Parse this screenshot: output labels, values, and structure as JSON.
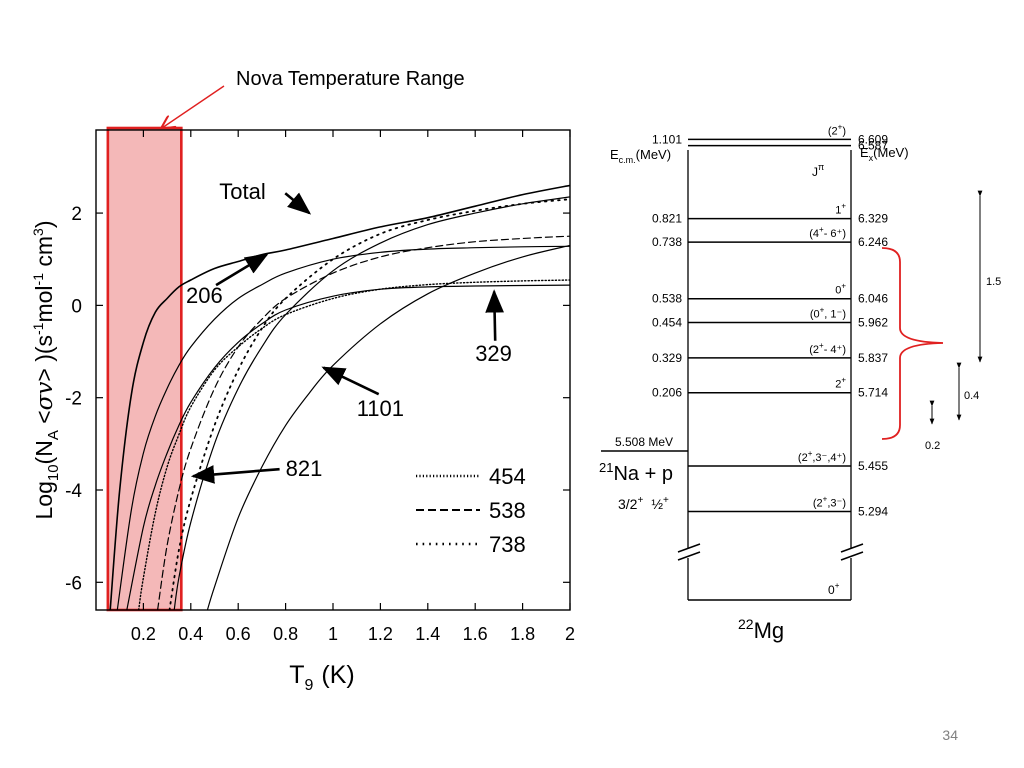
{
  "slide": {
    "page_number": "34",
    "callout": "Nova Temperature Range"
  },
  "colors": {
    "highlight_fill": "#f4b8b8",
    "highlight_stroke": "#e02020",
    "callout_line": "#e02020",
    "brace": "#e02020"
  },
  "chart_data": {
    "type": "line",
    "xlabel_main": "T",
    "xlabel_sub": "9",
    "xlabel_unit": "(K)",
    "ylabel_prefix": "Log",
    "ylabel_sub": "10",
    "ylabel_mid": "(N",
    "ylabel_a": "A",
    "ylabel_sigma": " <",
    "ylabel_sv": "σv",
    "ylabel_close": "> )(s",
    "ylabel_neg1a": "-1",
    "ylabel_mol": "mol",
    "ylabel_neg1b": "-1",
    "ylabel_cm": " cm",
    "ylabel_3": "3",
    "ylabel_end": ")",
    "xlim": [
      0,
      2
    ],
    "ylim": [
      -6.6,
      3.8
    ],
    "x_ticks": [
      {
        "value": 0.2,
        "label": "0.2"
      },
      {
        "value": 0.4,
        "label": "0.4"
      },
      {
        "value": 0.6,
        "label": "0.6"
      },
      {
        "value": 0.8,
        "label": "0.8"
      },
      {
        "value": 1.0,
        "label": "1"
      },
      {
        "value": 1.2,
        "label": "1.2"
      },
      {
        "value": 1.4,
        "label": "1.4"
      },
      {
        "value": 1.6,
        "label": "1.6"
      },
      {
        "value": 1.8,
        "label": "1.8"
      },
      {
        "value": 2.0,
        "label": "2"
      }
    ],
    "y_ticks": [
      {
        "value": 2,
        "label": "2"
      },
      {
        "value": 0,
        "label": "0"
      },
      {
        "value": -2,
        "label": "-2"
      },
      {
        "value": -4,
        "label": "-4"
      },
      {
        "value": -6,
        "label": "-6"
      }
    ],
    "nova_range": [
      0.05,
      0.36
    ],
    "series": [
      {
        "name": "Total",
        "style": "solid",
        "width": 1.6,
        "x": [
          0.06,
          0.1,
          0.15,
          0.2,
          0.25,
          0.3,
          0.35,
          0.4,
          0.5,
          0.6,
          0.7,
          0.8,
          1.0,
          1.2,
          1.4,
          1.6,
          1.8,
          2.0
        ],
        "y": [
          -6.6,
          -4.0,
          -1.9,
          -0.8,
          -0.15,
          0.15,
          0.4,
          0.55,
          0.8,
          0.95,
          1.1,
          1.2,
          1.45,
          1.7,
          1.9,
          2.15,
          2.4,
          2.6
        ]
      },
      {
        "name": "206",
        "style": "solid",
        "width": 1.2,
        "x": [
          0.09,
          0.15,
          0.2,
          0.25,
          0.3,
          0.35,
          0.4,
          0.5,
          0.6,
          0.7,
          0.8,
          1.0,
          1.2,
          1.4,
          1.6,
          1.8,
          2.0
        ],
        "y": [
          -6.6,
          -4.4,
          -3.2,
          -2.4,
          -1.8,
          -1.3,
          -0.9,
          -0.3,
          0.15,
          0.45,
          0.7,
          1.0,
          1.15,
          1.22,
          1.25,
          1.27,
          1.28
        ]
      },
      {
        "name": "329",
        "style": "solid",
        "width": 1.2,
        "x": [
          0.13,
          0.2,
          0.25,
          0.3,
          0.35,
          0.4,
          0.5,
          0.6,
          0.7,
          0.8,
          1.0,
          1.2,
          1.4,
          1.6,
          1.8,
          2.0
        ],
        "y": [
          -6.6,
          -4.8,
          -3.9,
          -3.2,
          -2.6,
          -2.1,
          -1.35,
          -0.8,
          -0.4,
          -0.1,
          0.2,
          0.35,
          0.4,
          0.42,
          0.43,
          0.44
        ]
      },
      {
        "name": "821",
        "style": "solid",
        "width": 1.2,
        "x": [
          0.33,
          0.35,
          0.4,
          0.5,
          0.6,
          0.7,
          0.8,
          1.0,
          1.2,
          1.4,
          1.6,
          1.8,
          2.0
        ],
        "y": [
          -6.6,
          -5.9,
          -4.7,
          -3.0,
          -1.8,
          -0.9,
          -0.2,
          0.75,
          1.35,
          1.75,
          2.0,
          2.2,
          2.35
        ]
      },
      {
        "name": "1101",
        "style": "solid",
        "width": 1.2,
        "x": [
          0.47,
          0.5,
          0.6,
          0.7,
          0.8,
          0.9,
          1.0,
          1.2,
          1.4,
          1.6,
          1.8,
          2.0
        ],
        "y": [
          -6.6,
          -6.1,
          -4.6,
          -3.5,
          -2.6,
          -1.9,
          -1.3,
          -0.4,
          0.25,
          0.7,
          1.05,
          1.3
        ]
      },
      {
        "name": "454",
        "style": "dotted-dense",
        "width": 1.4,
        "x": [
          0.18,
          0.2,
          0.25,
          0.3,
          0.35,
          0.4,
          0.5,
          0.6,
          0.7,
          0.8,
          1.0,
          1.2,
          1.4,
          1.6,
          1.8,
          2.0
        ],
        "y": [
          -6.6,
          -5.9,
          -4.5,
          -3.5,
          -2.8,
          -2.2,
          -1.4,
          -0.9,
          -0.5,
          -0.2,
          0.15,
          0.35,
          0.45,
          0.5,
          0.53,
          0.55
        ]
      },
      {
        "name": "538",
        "style": "dashed",
        "width": 1.2,
        "x": [
          0.26,
          0.3,
          0.35,
          0.4,
          0.5,
          0.6,
          0.7,
          0.8,
          1.0,
          1.2,
          1.4,
          1.6,
          1.8,
          2.0
        ],
        "y": [
          -6.6,
          -5.2,
          -4.0,
          -3.1,
          -1.8,
          -0.9,
          -0.3,
          0.15,
          0.7,
          1.05,
          1.25,
          1.38,
          1.45,
          1.5
        ]
      },
      {
        "name": "738",
        "style": "dotted-sparse",
        "width": 1.8,
        "x": [
          0.31,
          0.35,
          0.4,
          0.5,
          0.6,
          0.7,
          0.8,
          1.0,
          1.2,
          1.4,
          1.6,
          1.8,
          2.0
        ],
        "y": [
          -6.6,
          -5.3,
          -4.2,
          -2.6,
          -1.4,
          -0.5,
          0.15,
          1.0,
          1.55,
          1.85,
          2.05,
          2.2,
          2.3
        ]
      }
    ],
    "annotations": [
      {
        "text": "Total",
        "x": 0.52,
        "y": 2.3,
        "arrow_to": [
          0.9,
          2.0
        ]
      },
      {
        "text": "206",
        "x": 0.38,
        "y": 0.05,
        "arrow_to": [
          0.72,
          1.1
        ]
      },
      {
        "text": "329",
        "x": 1.6,
        "y": -1.2,
        "arrow_to": [
          1.68,
          0.3
        ]
      },
      {
        "text": "1101",
        "x": 1.1,
        "y": -2.4,
        "arrow_to": [
          0.96,
          -1.35
        ]
      },
      {
        "text": "821",
        "x": 0.8,
        "y": -3.7,
        "arrow_to": [
          0.41,
          -3.7
        ]
      }
    ],
    "legend": [
      {
        "label": "454",
        "style": "dotted-dense"
      },
      {
        "label": "538",
        "style": "dashed"
      },
      {
        "label": "738",
        "style": "dotted-sparse"
      }
    ]
  },
  "level_scheme": {
    "left_header": "E",
    "left_header_sub": "c.m.",
    "left_header_unit": "(MeV)",
    "right_header": "E",
    "right_header_sub": "x",
    "right_header_unit": "(MeV)",
    "jpi_header": "J",
    "jpi_sup": "π",
    "threshold_label": "5.508 MeV",
    "reaction": {
      "pre": "21",
      "main": "Na + p",
      "spin_left": "3/2",
      "spin_left_sup": "+",
      "spin_right": "½",
      "spin_right_sup": "+"
    },
    "nucleus": {
      "pre": "22",
      "main": "Mg"
    },
    "ground_jpi": "0",
    "ground_jpi_sup": "+",
    "levels": [
      {
        "ex": "6.609",
        "ecm": "1.101",
        "jpi": "(2",
        "jpi_sup": "+",
        "jpi_end": ")"
      },
      {
        "ex": "6.587",
        "ecm": "",
        "jpi": "",
        "jpi_sup": "",
        "jpi_end": ""
      },
      {
        "ex": "6.329",
        "ecm": "0.821",
        "jpi": "1",
        "jpi_sup": "+",
        "jpi_end": ""
      },
      {
        "ex": "6.246",
        "ecm": "0.738",
        "jpi": "(4",
        "jpi_sup": "+",
        "jpi_end": "- 6⁺)"
      },
      {
        "ex": "6.046",
        "ecm": "0.538",
        "jpi": "0",
        "jpi_sup": "+",
        "jpi_end": ""
      },
      {
        "ex": "5.962",
        "ecm": "0.454",
        "jpi": "(0",
        "jpi_sup": "+",
        "jpi_end": ", 1⁻)"
      },
      {
        "ex": "5.837",
        "ecm": "0.329",
        "jpi": "(2",
        "jpi_sup": "+",
        "jpi_end": "- 4⁺)"
      },
      {
        "ex": "5.714",
        "ecm": "0.206",
        "jpi": "2",
        "jpi_sup": "+",
        "jpi_end": ""
      },
      {
        "ex": "5.455",
        "ecm": "",
        "jpi": "(2",
        "jpi_sup": "+",
        "jpi_end": ",3⁻,4⁺)"
      },
      {
        "ex": "5.294",
        "ecm": "",
        "jpi": "(2",
        "jpi_sup": "+",
        "jpi_end": ",3⁻)"
      }
    ],
    "ranges": [
      {
        "label": "1.5"
      },
      {
        "label": "0.4"
      },
      {
        "label": "0.2"
      }
    ]
  }
}
